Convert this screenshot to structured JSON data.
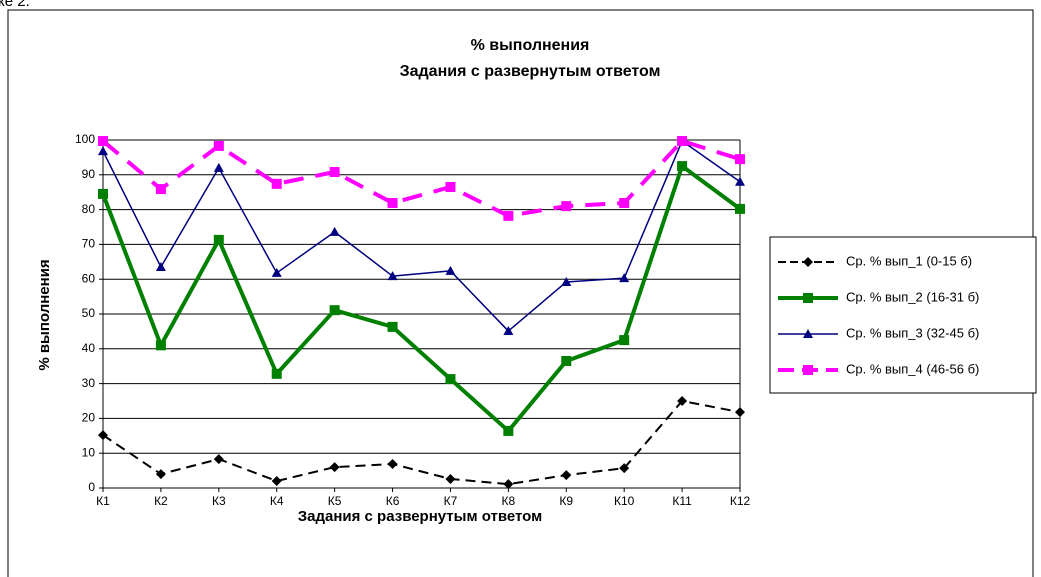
{
  "caption_fragment": "ке 2.",
  "chart_data": {
    "type": "line",
    "title": "% выполнения",
    "subtitle": "Задания с развернутым ответом",
    "x_label": "Задания с развернутым ответом",
    "y_label": "% выполнения",
    "categories": [
      "К1",
      "К2",
      "К3",
      "К4",
      "К5",
      "К6",
      "К7",
      "К8",
      "К9",
      "К10",
      "К11",
      "К12"
    ],
    "series": [
      {
        "name": "Ср. % вып_1 (0-15 б)",
        "color": "#000000",
        "marker": "diamond",
        "dashed": true,
        "line_width": 2,
        "values": [
          15.2,
          4,
          8.3,
          2,
          6,
          6.9,
          2.6,
          1.1,
          3.7,
          5.7,
          25,
          21.8
        ]
      },
      {
        "name": "Ср. % вып_2 (16-31 б)",
        "color": "#008000",
        "marker": "square",
        "dashed": false,
        "line_width": 4,
        "values": [
          84.5,
          41,
          71.3,
          32.8,
          51.1,
          46.3,
          31.3,
          16.4,
          36.5,
          42.5,
          92.5,
          80.2
        ]
      },
      {
        "name": "Ср. % вып_3 (32-45 б)",
        "color": "#000080",
        "marker": "triangle",
        "dashed": false,
        "line_width": 1.5,
        "values": [
          96.8,
          63.5,
          92,
          61.8,
          73.6,
          60.9,
          62.4,
          45.1,
          59.2,
          60.3,
          99.7,
          88
        ]
      },
      {
        "name": "Ср. % вып_4 (46-56 б)",
        "color": "#ff00ff",
        "marker": "square",
        "dashed": true,
        "line_width": 4,
        "values": [
          99.7,
          85.9,
          98.3,
          87.4,
          90.8,
          81.9,
          86.5,
          78.2,
          81,
          81.9,
          99.7,
          94.5
        ]
      }
    ],
    "ylim": [
      0,
      100
    ],
    "yticks": [
      0,
      10,
      20,
      30,
      40,
      50,
      60,
      70,
      80,
      90,
      100
    ],
    "grid": true,
    "legend": "right"
  }
}
